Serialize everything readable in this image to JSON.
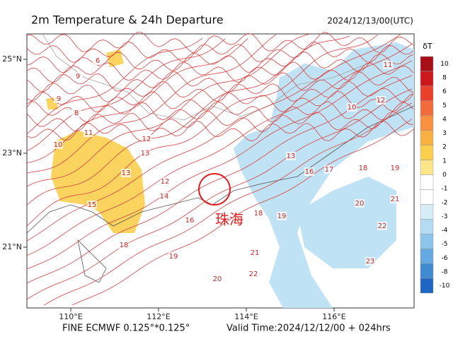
{
  "header": {
    "title": "2m Temperature & 24h Departure",
    "datetime": "2024/12/13/00(UTC)"
  },
  "map": {
    "lon_ticks": [
      {
        "value": 110,
        "label": "110°E"
      },
      {
        "value": 112,
        "label": "112°E"
      },
      {
        "value": 114,
        "label": "114°E"
      },
      {
        "value": 116,
        "label": "116°E"
      }
    ],
    "lat_ticks": [
      {
        "value": 25,
        "label": "25°N"
      },
      {
        "value": 23,
        "label": "23°N"
      },
      {
        "value": 21,
        "label": "21°N"
      }
    ],
    "annotation": "珠海",
    "contour_labels": [
      8,
      9,
      10,
      11,
      12,
      13,
      14,
      16,
      18,
      19,
      20,
      21,
      22,
      18,
      19,
      17,
      18,
      19,
      16,
      20,
      21,
      22,
      13,
      12,
      11,
      10,
      6,
      9,
      23,
      15,
      13,
      12
    ]
  },
  "colorbar": {
    "label": "δT",
    "ticks": [
      10,
      8,
      6,
      5,
      4,
      3,
      2,
      1,
      0,
      -1,
      -2,
      -3,
      -4,
      -5,
      -6,
      -8,
      -10
    ],
    "colors": [
      "#a50f15",
      "#cb181d",
      "#e8402b",
      "#f26b3a",
      "#f7913f",
      "#f9b040",
      "#fbcf4e",
      "#fde68a",
      "#ffffff",
      "#ffffff",
      "#d6edf8",
      "#b3dcf2",
      "#8cc5ea",
      "#64a9df",
      "#3f8bd2",
      "#1f66c2"
    ]
  },
  "footer": {
    "left": "FINE ECMWF 0.125°*0.125°",
    "right": "Valid Time:2024/12/12/00 + 024hrs"
  }
}
